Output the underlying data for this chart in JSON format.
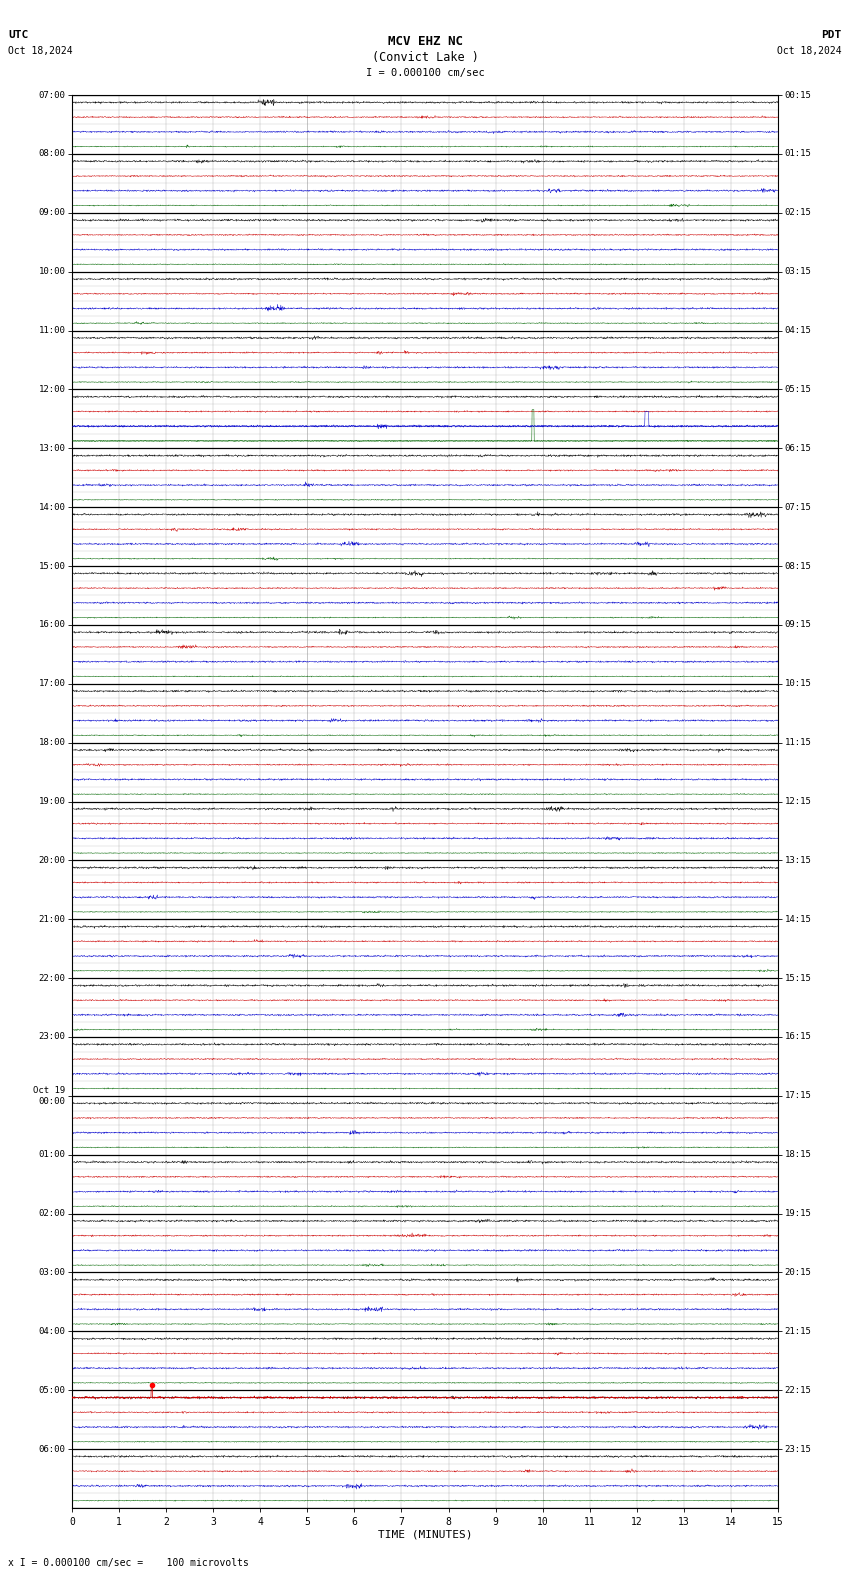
{
  "title_line1": "MCV EHZ NC",
  "title_line2": "(Convict Lake )",
  "scale_text": "I = 0.000100 cm/sec",
  "bottom_text": "x I = 0.000100 cm/sec =    100 microvolts",
  "utc_label": "UTC",
  "utc_date": "Oct 18,2024",
  "pdt_label": "PDT",
  "pdt_date": "Oct 18,2024",
  "xlabel": "TIME (MINUTES)",
  "xmin": 0,
  "xmax": 15,
  "background_color": "#ffffff",
  "trace_colors": [
    "#000000",
    "#cc0000",
    "#0000cc",
    "#006600"
  ],
  "left_labels": [
    "07:00",
    "08:00",
    "09:00",
    "10:00",
    "11:00",
    "12:00",
    "13:00",
    "14:00",
    "15:00",
    "16:00",
    "17:00",
    "18:00",
    "19:00",
    "20:00",
    "21:00",
    "22:00",
    "23:00",
    "Oct 19\n00:00",
    "01:00",
    "02:00",
    "03:00",
    "04:00",
    "05:00",
    "06:00"
  ],
  "right_labels": [
    "00:15",
    "01:15",
    "02:15",
    "03:15",
    "04:15",
    "05:15",
    "06:15",
    "07:15",
    "08:15",
    "09:15",
    "10:15",
    "11:15",
    "12:15",
    "13:15",
    "14:15",
    "15:15",
    "16:15",
    "17:15",
    "18:15",
    "19:15",
    "20:15",
    "21:15",
    "22:15",
    "23:15"
  ],
  "num_hour_blocks": 24,
  "traces_per_block": 4,
  "noise_amplitudes": [
    0.1,
    0.07,
    0.09,
    0.05
  ],
  "grid_color": "#999999",
  "major_grid_color": "#000000",
  "special_events": [
    {
      "block": 5,
      "trace": 1,
      "minute": 9.8,
      "amplitude": 0.85,
      "color": "#006600"
    },
    {
      "block": 5,
      "trace": 2,
      "minute": 12.2,
      "amplitude": 0.45,
      "color": "#0000cc"
    },
    {
      "block": 46,
      "trace": 0,
      "minute": 1.7,
      "amplitude": 0.35,
      "color": "#cc0000"
    }
  ]
}
